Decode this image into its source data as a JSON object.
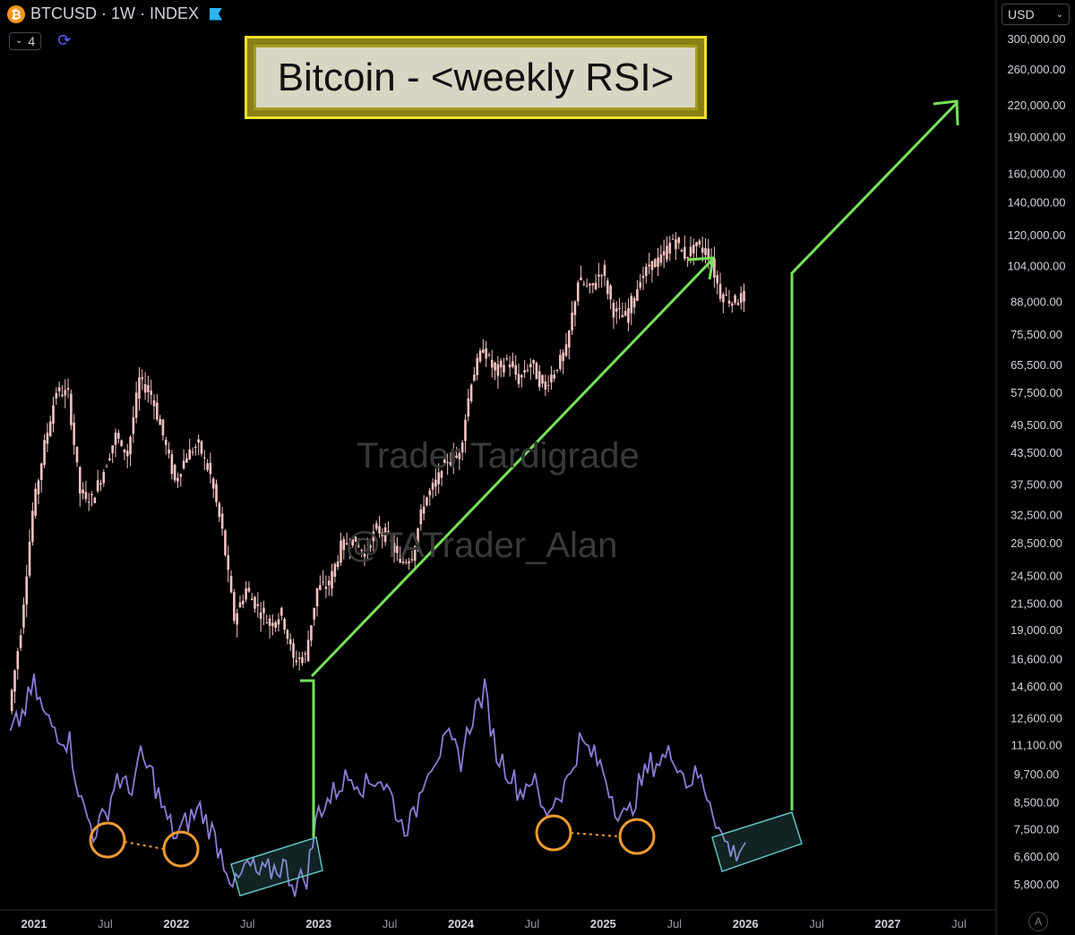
{
  "header": {
    "symbol_line": "BTCUSD · 1W · INDEX",
    "logo_glyph": "₿",
    "indicator_count": "4",
    "currency": "USD"
  },
  "title_box": {
    "text": "Bitcoin - <weekly RSI>"
  },
  "watermarks": [
    "Trader Tardigrade",
    "@TATrader_Alan"
  ],
  "auto_label": "A",
  "colors": {
    "background": "#000000",
    "candles": "#f4c2c2",
    "rsi": "#8c7cd6",
    "arrows": "#76e25a",
    "circles": "#ef9c32",
    "boxes": "#5fc1bf",
    "title_border": "#f0e02c"
  },
  "chart_data": {
    "type": "line",
    "price_axis": {
      "scale": "log",
      "ticks": [
        "300,000.00",
        "260,000.00",
        "220,000.00",
        "190,000.00",
        "160,000.00",
        "140,000.00",
        "120,000.00",
        "104,000.00",
        "88,000.00",
        "75,500.00",
        "65,500.00",
        "57,500.00",
        "49,500.00",
        "43,500.00",
        "37,500.00",
        "32,500.00",
        "28,500.00",
        "24,500.00",
        "21,500.00",
        "19,000.00",
        "16,600.00",
        "14,600.00",
        "12,600.00",
        "11,100.00",
        "9,700.00",
        "8,500.00",
        "7,500.00",
        "6,600.00",
        "5,800.00"
      ],
      "tick_values": [
        300000,
        260000,
        220000,
        190000,
        160000,
        140000,
        120000,
        104000,
        88000,
        75500,
        65500,
        57500,
        49500,
        43500,
        37500,
        32500,
        28500,
        24500,
        21500,
        19000,
        16600,
        14600,
        12600,
        11100,
        9700,
        8500,
        7500,
        6600,
        5800
      ]
    },
    "time_axis": {
      "labels": [
        "2021",
        "Jul",
        "2022",
        "Jul",
        "2023",
        "Jul",
        "2024",
        "Jul",
        "2025",
        "Jul",
        "2026",
        "Jul",
        "2027",
        "Jul"
      ],
      "major": [
        "2021",
        "2022",
        "2023",
        "2024",
        "2025",
        "2026",
        "2027"
      ]
    },
    "series": [
      {
        "id": "btc_weekly_close",
        "style": "candles",
        "x": [
          "2020-11",
          "2020-12",
          "2021-01",
          "2021-02",
          "2021-03",
          "2021-04",
          "2021-05",
          "2021-06",
          "2021-07",
          "2021-08",
          "2021-09",
          "2021-10",
          "2021-11",
          "2021-12",
          "2022-01",
          "2022-02",
          "2022-03",
          "2022-04",
          "2022-05",
          "2022-06",
          "2022-07",
          "2022-08",
          "2022-09",
          "2022-10",
          "2022-11",
          "2022-12",
          "2023-01",
          "2023-02",
          "2023-03",
          "2023-04",
          "2023-05",
          "2023-06",
          "2023-07",
          "2023-08",
          "2023-09",
          "2023-10",
          "2023-11",
          "2023-12",
          "2024-01",
          "2024-02",
          "2024-03",
          "2024-04",
          "2024-05",
          "2024-06",
          "2024-07",
          "2024-08",
          "2024-09",
          "2024-10",
          "2024-11",
          "2024-12",
          "2025-01",
          "2025-02",
          "2025-03",
          "2025-04",
          "2025-05",
          "2025-06",
          "2025-07",
          "2025-08",
          "2025-09",
          "2025-10",
          "2025-11",
          "2025-12",
          "2026-01"
        ],
        "y": [
          13000,
          19000,
          33000,
          45000,
          58000,
          57000,
          36000,
          35000,
          40000,
          47000,
          43000,
          61000,
          57000,
          47000,
          38000,
          43000,
          45000,
          39000,
          30000,
          20000,
          23000,
          21000,
          19500,
          20500,
          16500,
          16800,
          23000,
          23500,
          28000,
          29000,
          27000,
          30500,
          29200,
          26000,
          26900,
          34500,
          37700,
          42000,
          43000,
          61000,
          71000,
          63000,
          67000,
          61000,
          66000,
          59000,
          63500,
          70000,
          97000,
          93000,
          102000,
          84000,
          82000,
          94000,
          104000,
          107000,
          118000,
          109000,
          114000,
          110000,
          91000,
          88000,
          90000
        ]
      },
      {
        "id": "weekly_rsi",
        "style": "line",
        "x": [
          "2020-11",
          "2020-12",
          "2021-01",
          "2021-02",
          "2021-03",
          "2021-04",
          "2021-05",
          "2021-06",
          "2021-07",
          "2021-08",
          "2021-09",
          "2021-10",
          "2021-11",
          "2021-12",
          "2022-01",
          "2022-02",
          "2022-03",
          "2022-04",
          "2022-05",
          "2022-06",
          "2022-07",
          "2022-08",
          "2022-09",
          "2022-10",
          "2022-11",
          "2022-12",
          "2023-01",
          "2023-02",
          "2023-03",
          "2023-04",
          "2023-05",
          "2023-06",
          "2023-07",
          "2023-08",
          "2023-09",
          "2023-10",
          "2023-11",
          "2023-12",
          "2024-01",
          "2024-02",
          "2024-03",
          "2024-04",
          "2024-05",
          "2024-06",
          "2024-07",
          "2024-08",
          "2024-09",
          "2024-10",
          "2024-11",
          "2024-12",
          "2025-01",
          "2025-02",
          "2025-03",
          "2025-04",
          "2025-05",
          "2025-06",
          "2025-07",
          "2025-08",
          "2025-09",
          "2025-10",
          "2025-11",
          "2025-12",
          "2026-01"
        ],
        "y": [
          72,
          80,
          90,
          78,
          74,
          70,
          48,
          38,
          43,
          58,
          52,
          64,
          58,
          44,
          36,
          42,
          46,
          38,
          28,
          18,
          26,
          22,
          24,
          26,
          19,
          22,
          46,
          50,
          56,
          58,
          54,
          58,
          52,
          40,
          42,
          60,
          66,
          70,
          64,
          80,
          88,
          66,
          60,
          52,
          58,
          44,
          50,
          56,
          70,
          66,
          60,
          48,
          42,
          54,
          62,
          64,
          66,
          56,
          58,
          50,
          36,
          30,
          34
        ]
      }
    ],
    "annotations": {
      "arrows": 3,
      "circles": 4,
      "highlight_boxes": 2
    },
    "grid": false,
    "legend": "none"
  }
}
